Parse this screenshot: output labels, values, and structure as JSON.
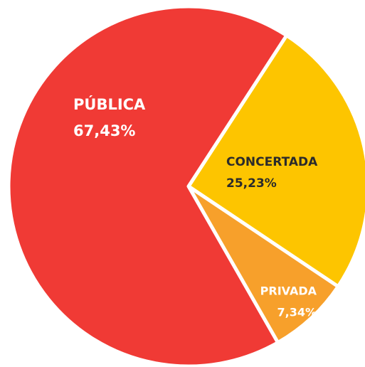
{
  "chart_data": {
    "type": "pie",
    "categories": [
      "CONCERTADA",
      "PRIVADA",
      "PÚBLICA"
    ],
    "values": [
      25.23,
      7.34,
      67.43
    ],
    "value_labels": [
      "25,23%",
      "7,34%",
      "67,43%"
    ],
    "colors": [
      "#fdc500",
      "#f7a02b",
      "#f03a35"
    ]
  }
}
